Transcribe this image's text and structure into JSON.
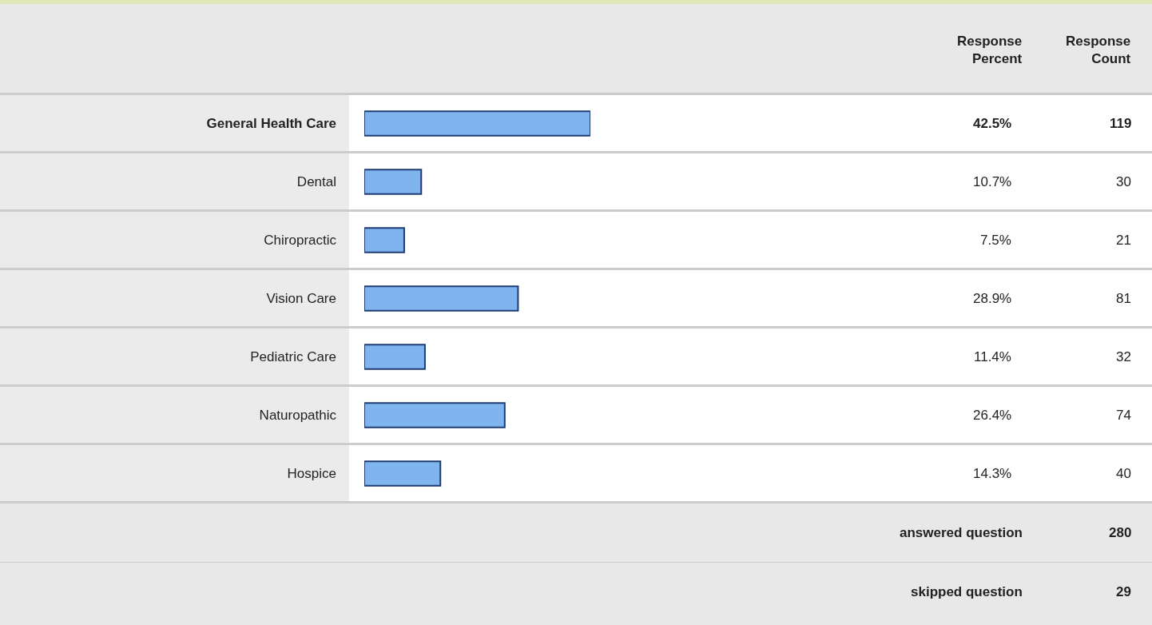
{
  "chart_data": {
    "type": "bar",
    "orientation": "horizontal",
    "categories": [
      "General Health Care",
      "Dental",
      "Chiropractic",
      "Vision Care",
      "Pediatric Care",
      "Naturopathic",
      "Hospice"
    ],
    "series": [
      {
        "color": "#7fb4ee",
        "values": [
          42.5,
          10.7,
          7.5,
          28.9,
          11.4,
          26.4,
          14.3
        ],
        "value_labels": [
          "42.5%",
          "10.7%",
          "7.5%",
          "28.9%",
          "11.4%",
          "26.4%",
          "14.3%"
        ]
      }
    ],
    "tick_labels": "y",
    "grid": false,
    "legend": false,
    "annotations": [
      "Response Percent",
      "Response Count",
      "119",
      "30",
      "21",
      "81",
      "32",
      "74",
      "40",
      "answered question",
      "280",
      "skipped question",
      "29"
    ]
  }
}
